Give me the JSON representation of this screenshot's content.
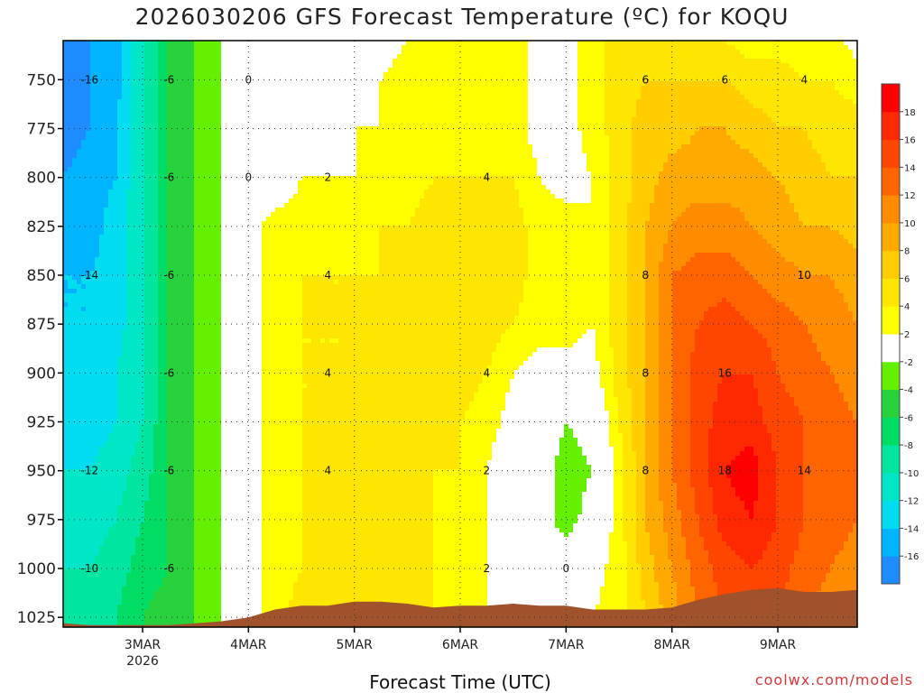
{
  "chart_data": {
    "type": "heatmap",
    "title": "2026030206 GFS Forecast Temperature (ºC) for KOQU",
    "xlabel": "Forecast Time (UTC)",
    "ylabel": "",
    "watermark": "coolwx.com/models",
    "x_ticks": [
      {
        "label": "3MAR",
        "sublabel": "2026",
        "day": 3
      },
      {
        "label": "4MAR",
        "sublabel": "",
        "day": 4
      },
      {
        "label": "5MAR",
        "sublabel": "",
        "day": 5
      },
      {
        "label": "6MAR",
        "sublabel": "",
        "day": 6
      },
      {
        "label": "7MAR",
        "sublabel": "",
        "day": 7
      },
      {
        "label": "8MAR",
        "sublabel": "",
        "day": 8
      },
      {
        "label": "9MAR",
        "sublabel": "",
        "day": 9
      }
    ],
    "xlim": [
      2.25,
      9.75
    ],
    "ylim": [
      730,
      1030
    ],
    "y_ticks": [
      750,
      775,
      800,
      825,
      850,
      875,
      900,
      925,
      950,
      975,
      1000,
      1025
    ],
    "y_inverted": true,
    "grid": true,
    "colorbar": {
      "levels": [
        -18,
        -16,
        -14,
        -12,
        -10,
        -8,
        -6,
        -4,
        -2,
        2,
        4,
        6,
        8,
        10,
        12,
        14,
        16,
        18,
        20
      ],
      "labels": [
        "-16",
        "-14",
        "-12",
        "-10",
        "-8",
        "-6",
        "-4",
        "-2",
        "2",
        "4",
        "6",
        "8",
        "10",
        "12",
        "14",
        "16",
        "18"
      ],
      "colors": [
        "#1e8cff",
        "#00b4ff",
        "#00dcf0",
        "#00e6c8",
        "#00e6a0",
        "#00dc64",
        "#28d23c",
        "#64f000",
        "#ffffff",
        "#ffff00",
        "#ffe600",
        "#ffcd00",
        "#ffaa00",
        "#ff8c00",
        "#ff6400",
        "#ff4600",
        "#ff2800",
        "#ff0000"
      ]
    },
    "surface_color": "#a0522d",
    "grid_times": [
      2.25,
      2.5,
      2.75,
      3.0,
      3.25,
      3.5,
      3.75,
      4.0,
      4.25,
      4.5,
      4.75,
      5.0,
      5.25,
      5.5,
      5.75,
      6.0,
      6.25,
      6.5,
      6.75,
      7.0,
      7.25,
      7.5,
      7.75,
      8.0,
      8.25,
      8.5,
      8.75,
      9.0,
      9.25,
      9.5,
      9.75
    ],
    "grid_levels": [
      730,
      750,
      775,
      800,
      825,
      850,
      875,
      900,
      925,
      950,
      975,
      1000,
      1025
    ],
    "surface_pressure": [
      1028,
      1029,
      1029,
      1029,
      1029,
      1028,
      1027,
      1025,
      1021,
      1019,
      1019,
      1017,
      1017,
      1018,
      1020,
      1019,
      1019,
      1018,
      1019,
      1019,
      1021,
      1021,
      1021,
      1020,
      1016,
      1013,
      1011,
      1010,
      1012,
      1012,
      1011
    ],
    "temperature": [
      [
        -18,
        -16,
        -15,
        -10,
        -6,
        -4,
        -2,
        1,
        1,
        1,
        1,
        1,
        1,
        2,
        2,
        3,
        3,
        3,
        1,
        1,
        3,
        5,
        5,
        5,
        5,
        4,
        3,
        3,
        3,
        3,
        1
      ],
      [
        -18,
        -16,
        -15,
        -10,
        -6,
        -4,
        -2,
        0,
        0,
        0,
        1,
        1,
        2,
        3,
        3,
        3,
        3,
        3,
        1,
        1,
        3,
        5,
        6,
        6,
        6,
        6,
        5,
        5,
        4,
        4,
        3
      ],
      [
        -17,
        -16,
        -14,
        -10,
        -6,
        -4,
        -2,
        0,
        0,
        0,
        1,
        2,
        2,
        3,
        3,
        3,
        3,
        3,
        1,
        1,
        3,
        5,
        7,
        7,
        8,
        8,
        7,
        6,
        6,
        5,
        5
      ],
      [
        -16,
        -15,
        -14,
        -10,
        -6,
        -4,
        -2,
        0,
        0,
        2,
        2,
        2,
        3,
        3,
        4,
        4,
        4,
        4,
        2,
        1,
        2,
        5,
        7,
        9,
        9,
        9,
        9,
        8,
        7,
        6,
        6
      ],
      [
        -15,
        -15,
        -13,
        -10,
        -6,
        -4,
        -2,
        1,
        3,
        3,
        3,
        3,
        4,
        4,
        5,
        5,
        5,
        5,
        3,
        3,
        2,
        5,
        8,
        10,
        11,
        11,
        10,
        9,
        8,
        8,
        7
      ],
      [
        -14,
        -14,
        -13,
        -10,
        -6,
        -4,
        -2,
        1,
        3,
        4,
        4,
        4,
        4,
        5,
        5,
        5,
        5,
        5,
        3,
        3,
        2,
        5,
        8,
        12,
        13,
        13,
        12,
        11,
        10,
        10,
        9
      ],
      [
        -14,
        -14,
        -13,
        -10,
        -6,
        -4,
        -2,
        1,
        3,
        4,
        4,
        4,
        4,
        5,
        5,
        5,
        5,
        4,
        3,
        3,
        2,
        5,
        8,
        12,
        14,
        15,
        14,
        13,
        12,
        11,
        10
      ],
      [
        -13,
        -13,
        -12,
        -10,
        -6,
        -4,
        -2,
        1,
        3,
        4,
        4,
        4,
        5,
        5,
        5,
        5,
        4,
        2,
        1,
        1,
        1,
        5,
        8,
        12,
        15,
        16,
        16,
        14,
        13,
        12,
        11
      ],
      [
        -13,
        -13,
        -12,
        -10,
        -6,
        -4,
        -2,
        1,
        3,
        4,
        4,
        5,
        5,
        5,
        4,
        4,
        3,
        1,
        0,
        -2,
        -1,
        4,
        8,
        12,
        15,
        17,
        17,
        15,
        14,
        13,
        12
      ],
      [
        -12,
        -12,
        -11,
        -9,
        -6,
        -4,
        -2,
        1,
        3,
        4,
        4,
        5,
        5,
        5,
        4,
        4,
        2,
        0,
        -1,
        -3,
        -2,
        3,
        8,
        12,
        15,
        18,
        19,
        16,
        14,
        13,
        12
      ],
      [
        -11,
        -11,
        -10,
        -8,
        -6,
        -4,
        -2,
        1,
        3,
        4,
        5,
        5,
        5,
        5,
        4,
        3,
        2,
        0,
        -1,
        -3,
        -1,
        3,
        8,
        11,
        14,
        17,
        18,
        16,
        14,
        13,
        12
      ],
      [
        -10,
        -10,
        -9,
        -7,
        -6,
        -4,
        -2,
        1,
        3,
        4,
        5,
        6,
        5,
        5,
        4,
        3,
        2,
        1,
        0,
        0,
        1,
        3,
        7,
        10,
        13,
        15,
        16,
        15,
        13,
        12,
        11
      ],
      [
        -9,
        -9,
        -8,
        -6,
        -5,
        -4,
        -2,
        1,
        3,
        5,
        5,
        6,
        5,
        5,
        4,
        3,
        2,
        1,
        1,
        1,
        2,
        3,
        6,
        9,
        12,
        14,
        15,
        14,
        12,
        11,
        10
      ]
    ]
  }
}
